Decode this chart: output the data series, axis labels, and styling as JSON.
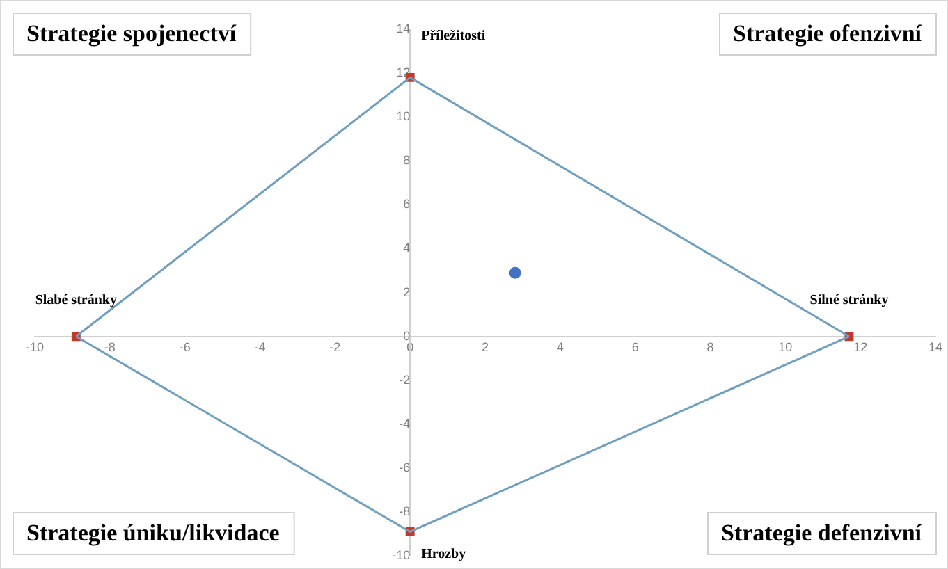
{
  "chart_data": {
    "type": "line",
    "series": [
      {
        "x": [
          -8.9,
          0,
          11.7
        ],
        "values": [
          0,
          11.8,
          0
        ],
        "color": "#6f9fbf",
        "marker": "none"
      },
      {
        "x": [
          -8.9,
          0,
          11.7
        ],
        "values": [
          0,
          -8.9,
          0
        ],
        "color": "#6f9fbf",
        "marker": "none"
      },
      {
        "type": "scatter",
        "x": [
          -8.9,
          0,
          11.7,
          0
        ],
        "values": [
          0,
          11.8,
          0,
          -8.9
        ],
        "color": "#c0392b",
        "marker": "square"
      },
      {
        "type": "scatter",
        "x": [
          2.8
        ],
        "values": [
          2.9
        ],
        "color": "#4472c4",
        "marker": "circle"
      }
    ],
    "xlim": [
      -10,
      14
    ],
    "xticks": [
      -10,
      -8,
      -6,
      -4,
      -2,
      0,
      2,
      4,
      6,
      8,
      10,
      12,
      14
    ],
    "ylim": [
      -10,
      14
    ],
    "yticks": [
      -10,
      -8,
      -6,
      -4,
      -2,
      0,
      2,
      4,
      6,
      8,
      10,
      12,
      14
    ],
    "grid": false,
    "legend": false,
    "annotations": [
      {
        "text": "Příležitosti",
        "x": 0,
        "y": 11.8
      },
      {
        "text": "Slabé stránky",
        "x": -8.9,
        "y": 0
      },
      {
        "text": "Silné stránky",
        "x": 11.7,
        "y": 0
      },
      {
        "text": "Hrozby",
        "x": 0,
        "y": -8.9
      },
      "Strategie spojenectví",
      "Strategie ofenzivní",
      "Strategie úniku/likvidace",
      "Strategie defenzivní"
    ]
  }
}
